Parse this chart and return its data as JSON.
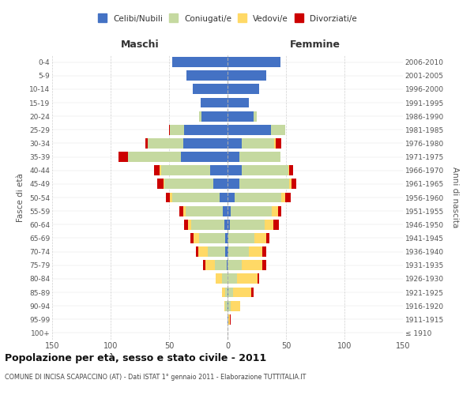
{
  "age_groups": [
    "100+",
    "95-99",
    "90-94",
    "85-89",
    "80-84",
    "75-79",
    "70-74",
    "65-69",
    "60-64",
    "55-59",
    "50-54",
    "45-49",
    "40-44",
    "35-39",
    "30-34",
    "25-29",
    "20-24",
    "15-19",
    "10-14",
    "5-9",
    "0-4"
  ],
  "birth_years": [
    "≤ 1910",
    "1911-1915",
    "1916-1920",
    "1921-1925",
    "1926-1930",
    "1931-1935",
    "1936-1940",
    "1941-1945",
    "1946-1950",
    "1951-1955",
    "1956-1960",
    "1961-1965",
    "1966-1970",
    "1971-1975",
    "1976-1980",
    "1981-1985",
    "1986-1990",
    "1991-1995",
    "1996-2000",
    "2001-2005",
    "2006-2010"
  ],
  "maschi_celibe": [
    0,
    0,
    0,
    0,
    0,
    1,
    2,
    2,
    3,
    4,
    7,
    12,
    15,
    40,
    38,
    37,
    22,
    23,
    30,
    35,
    47
  ],
  "maschi_coniugato": [
    0,
    0,
    2,
    2,
    5,
    10,
    15,
    22,
    28,
    32,
    40,
    42,
    42,
    45,
    30,
    12,
    2,
    0,
    0,
    0,
    0
  ],
  "maschi_vedovo": [
    0,
    0,
    1,
    3,
    5,
    8,
    8,
    5,
    3,
    2,
    2,
    1,
    1,
    0,
    0,
    0,
    0,
    0,
    0,
    0,
    0
  ],
  "maschi_divorziato": [
    0,
    0,
    0,
    0,
    0,
    2,
    2,
    3,
    3,
    3,
    4,
    5,
    5,
    8,
    2,
    1,
    0,
    0,
    0,
    0,
    0
  ],
  "femmine_celibe": [
    0,
    1,
    1,
    1,
    0,
    0,
    1,
    1,
    2,
    3,
    6,
    10,
    12,
    10,
    12,
    37,
    22,
    18,
    27,
    33,
    45
  ],
  "femmine_coniugato": [
    0,
    0,
    2,
    4,
    8,
    12,
    17,
    22,
    30,
    35,
    40,
    43,
    40,
    35,
    28,
    12,
    3,
    0,
    0,
    0,
    0
  ],
  "femmine_vedovo": [
    0,
    1,
    8,
    15,
    18,
    18,
    12,
    10,
    7,
    5,
    3,
    2,
    1,
    0,
    1,
    0,
    0,
    0,
    0,
    0,
    0
  ],
  "femmine_divorziato": [
    0,
    1,
    0,
    2,
    1,
    3,
    3,
    3,
    5,
    3,
    5,
    4,
    3,
    0,
    5,
    0,
    0,
    0,
    0,
    0,
    0
  ],
  "color_celibe": "#4472C4",
  "color_coniugato": "#C5D9A0",
  "color_vedovo": "#FFD966",
  "color_divorziato": "#CC0000",
  "title": "Popolazione per età, sesso e stato civile - 2011",
  "subtitle": "COMUNE DI INCISA SCAPACCINO (AT) - Dati ISTAT 1° gennaio 2011 - Elaborazione TUTTITALIA.IT",
  "xlabel_left": "Maschi",
  "xlabel_right": "Femmine",
  "ylabel_left": "Fasce di età",
  "ylabel_right": "Anni di nascita",
  "xlim": 150,
  "bg_color": "#FFFFFF",
  "grid_color": "#CCCCCC",
  "legend_labels": [
    "Celibi/Nubili",
    "Coniugati/e",
    "Vedovi/e",
    "Divorziati/e"
  ]
}
